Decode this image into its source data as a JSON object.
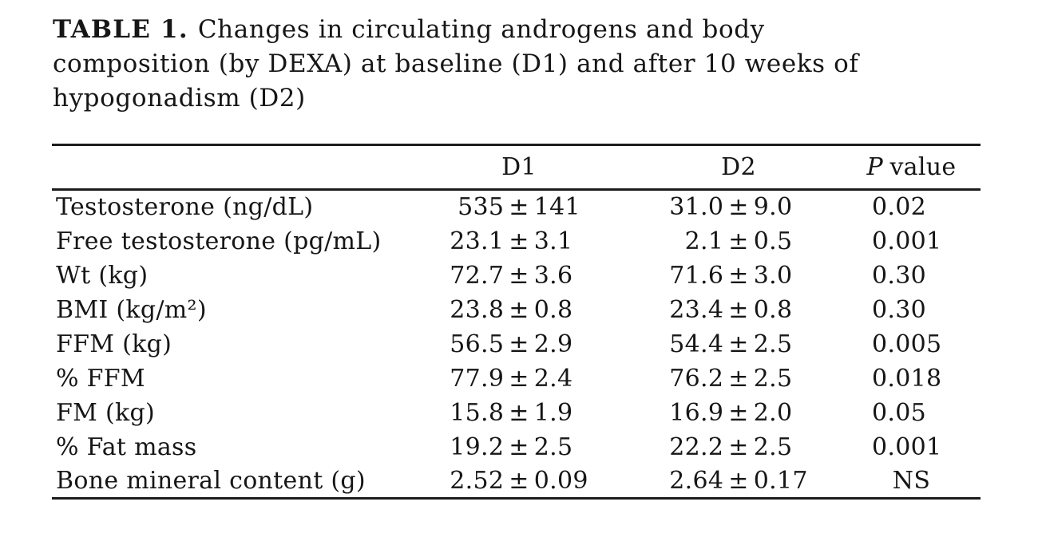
{
  "page": {
    "background_color": "#ffffff",
    "text_color": "#161616",
    "rule_color": "#1c1c1c"
  },
  "title": {
    "label": "TABLE 1.",
    "line1": "Changes in circulating androgens and body",
    "line2": "composition (by DEXA) at baseline (D1) and after 10 weeks of",
    "line3": "hypogonadism (D2)"
  },
  "table": {
    "pm": "±",
    "headers": {
      "rowlabel": "",
      "d1": "D1",
      "d2": "D2",
      "p_italic": "P",
      "p_rest": "value"
    },
    "rows": [
      {
        "label": "Testosterone (ng/dL)",
        "d1m": "535",
        "d1s": "141",
        "d2m": "31.0",
        "d2s": "9.0",
        "p": "0.02"
      },
      {
        "label": "Free testosterone (pg/mL)",
        "d1m": "23.1",
        "d1s": "3.1",
        "d2m": "2.1",
        "d2s": "0.5",
        "p": "0.001"
      },
      {
        "label": "Wt (kg)",
        "d1m": "72.7",
        "d1s": "3.6",
        "d2m": "71.6",
        "d2s": "3.0",
        "p": "0.30"
      },
      {
        "label": "BMI (kg/m²)",
        "d1m": "23.8",
        "d1s": "0.8",
        "d2m": "23.4",
        "d2s": "0.8",
        "p": "0.30"
      },
      {
        "label": "FFM (kg)",
        "d1m": "56.5",
        "d1s": "2.9",
        "d2m": "54.4",
        "d2s": "2.5",
        "p": "0.005"
      },
      {
        "label": "% FFM",
        "d1m": "77.9",
        "d1s": "2.4",
        "d2m": "76.2",
        "d2s": "2.5",
        "p": "0.018"
      },
      {
        "label": "FM (kg)",
        "d1m": "15.8",
        "d1s": "1.9",
        "d2m": "16.9",
        "d2s": "2.0",
        "p": "0.05"
      },
      {
        "label": "% Fat mass",
        "d1m": "19.2",
        "d1s": "2.5",
        "d2m": "22.2",
        "d2s": "2.5",
        "p": "0.001"
      },
      {
        "label": "Bone mineral content (g)",
        "d1m": "2.52",
        "d1s": "0.09",
        "d2m": "2.64",
        "d2s": "0.17",
        "p": "NS"
      }
    ]
  }
}
